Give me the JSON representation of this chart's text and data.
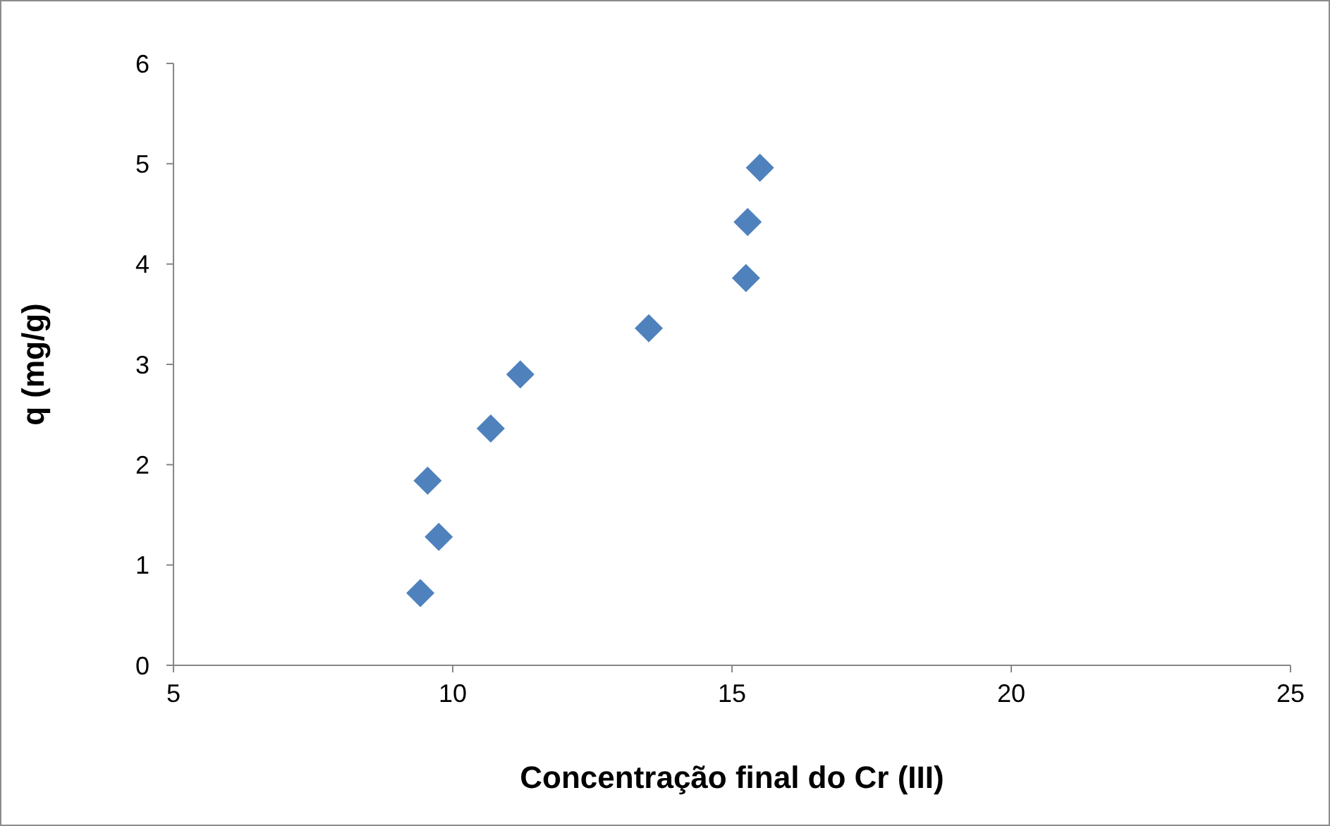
{
  "chart_data": {
    "type": "scatter",
    "xlabel": "Concentração final do Cr (III)",
    "ylabel": "q (mg/g)",
    "x": [
      9.42,
      9.75,
      9.55,
      10.68,
      11.21,
      13.51,
      15.25,
      15.28,
      15.5
    ],
    "series": [
      {
        "color": "#4f81bd",
        "values": [
          0.72,
          1.28,
          1.84,
          2.36,
          2.9,
          3.36,
          3.86,
          4.42,
          4.96
        ]
      }
    ],
    "xlim": [
      5,
      25
    ],
    "xticks": [
      5,
      10,
      15,
      20,
      25
    ],
    "ylim": [
      0,
      6
    ],
    "yticks": [
      0,
      1,
      2,
      3,
      4,
      5,
      6
    ],
    "grid": false,
    "legend": false,
    "marker": "diamond"
  }
}
